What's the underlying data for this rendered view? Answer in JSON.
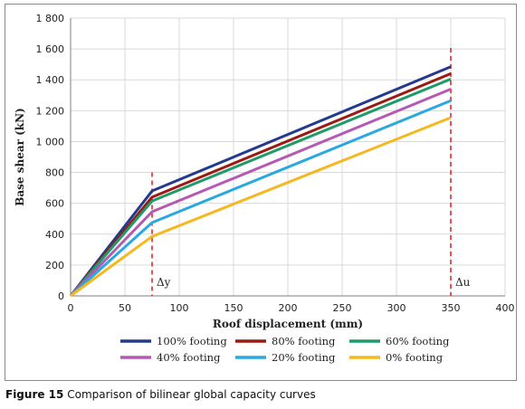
{
  "caption": {
    "label": "Figure 15",
    "text": "Comparison of bilinear global capacity curves"
  },
  "chart_data": {
    "type": "line",
    "title": "",
    "xlabel": "Roof displacement (mm)",
    "ylabel": "Base shear (kN)",
    "xlim": [
      0,
      400
    ],
    "ylim": [
      0,
      1800
    ],
    "xticks": [
      0,
      50,
      100,
      150,
      200,
      250,
      300,
      350,
      400
    ],
    "yticks": [
      0,
      200,
      400,
      600,
      800,
      1000,
      1200,
      1400,
      1600,
      1800
    ],
    "ytick_labels": [
      "0",
      "200",
      "400",
      "600",
      "800",
      "1 000",
      "1 200",
      "1 400",
      "1 600",
      "1 800"
    ],
    "grid": true,
    "legend_position": "bottom",
    "series": [
      {
        "name": "100% footing",
        "color": "#243a8c",
        "x": [
          0,
          75,
          350
        ],
        "y": [
          0,
          680,
          1485
        ]
      },
      {
        "name": "80% footing",
        "color": "#9b1b12",
        "x": [
          0,
          75,
          350
        ],
        "y": [
          0,
          640,
          1440
        ]
      },
      {
        "name": "60% footing",
        "color": "#1f9b6a",
        "x": [
          0,
          75,
          350
        ],
        "y": [
          0,
          615,
          1405
        ]
      },
      {
        "name": "40% footing",
        "color": "#b45ab4",
        "x": [
          0,
          75,
          350
        ],
        "y": [
          0,
          545,
          1340
        ]
      },
      {
        "name": "20% footing",
        "color": "#29a9e0",
        "x": [
          0,
          75,
          350
        ],
        "y": [
          0,
          475,
          1265
        ]
      },
      {
        "name": "0% footing",
        "color": "#f5b820",
        "x": [
          0,
          75,
          350
        ],
        "y": [
          0,
          385,
          1155
        ]
      }
    ],
    "annotations": [
      {
        "label": "Δy",
        "x": 75,
        "color": "#e3262d"
      },
      {
        "label": "Δu",
        "x": 350,
        "color": "#e3262d"
      }
    ]
  }
}
